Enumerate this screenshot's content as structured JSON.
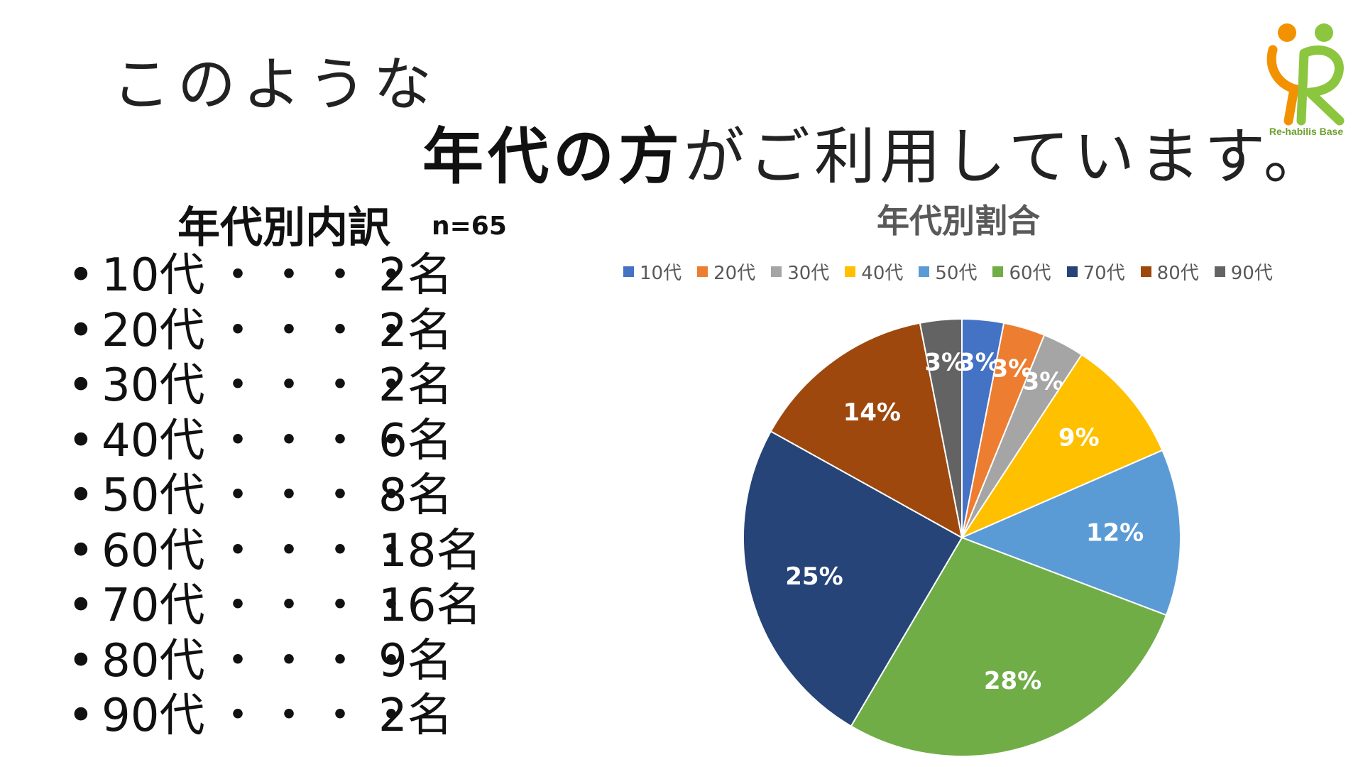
{
  "heading": {
    "line1": "このような",
    "line2_bold": "年代の方",
    "line2_light": "がご利用しています。"
  },
  "logo": {
    "text": "Re-habilis Base"
  },
  "breakdown": {
    "title": "年代別内訳",
    "n": "n=65",
    "bullet": "•",
    "dots": "・・・・",
    "items": [
      {
        "age": "10代",
        "count": "2名"
      },
      {
        "age": "20代",
        "count": "2名"
      },
      {
        "age": "30代",
        "count": "2名"
      },
      {
        "age": "40代",
        "count": "6名"
      },
      {
        "age": "50代",
        "count": "8名"
      },
      {
        "age": "60代",
        "count": "18名"
      },
      {
        "age": "70代",
        "count": "16名"
      },
      {
        "age": "80代",
        "count": "9名"
      },
      {
        "age": "90代",
        "count": "2名"
      }
    ]
  },
  "chart_data": {
    "type": "pie",
    "title": "年代別割合",
    "legend_position": "top",
    "categories": [
      "10代",
      "20代",
      "30代",
      "40代",
      "50代",
      "60代",
      "70代",
      "80代",
      "90代"
    ],
    "values": [
      2,
      2,
      2,
      6,
      8,
      18,
      16,
      9,
      2
    ],
    "labels": [
      "3%",
      "3%",
      "3%",
      "9%",
      "12%",
      "28%",
      "25%",
      "14%",
      "3%"
    ],
    "colors": [
      "#4472C4",
      "#ED7D31",
      "#A5A5A5",
      "#FFC000",
      "#5B9BD5",
      "#70AD47",
      "#264478",
      "#9E480E",
      "#636363"
    ]
  }
}
